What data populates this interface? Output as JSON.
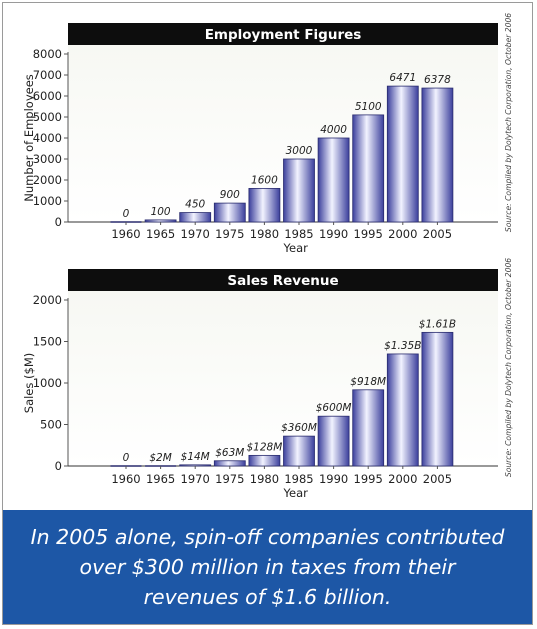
{
  "chart_data": [
    {
      "type": "bar",
      "title": "Employment Figures",
      "xlabel": "Year",
      "ylabel": "Number of Employees",
      "categories": [
        "1960",
        "1965",
        "1970",
        "1975",
        "1980",
        "1985",
        "1990",
        "1995",
        "2000",
        "2005"
      ],
      "values": [
        0,
        100,
        450,
        900,
        1600,
        3000,
        4000,
        5100,
        6471,
        6378
      ],
      "data_labels": [
        "0",
        "100",
        "450",
        "900",
        "1600",
        "3000",
        "4000",
        "5100",
        "6471",
        "6378"
      ],
      "yticks": [
        0,
        1000,
        2000,
        3000,
        4000,
        5000,
        6000,
        7000,
        8000
      ],
      "ytick_labels": [
        "0",
        "1000",
        "2000",
        "3000",
        "4000",
        "5000",
        "6000",
        "7000",
        "8000"
      ],
      "ylim": [
        0,
        8000
      ],
      "source": "Source: Compiled by Dolytech Corporation, October 2006"
    },
    {
      "type": "bar",
      "title": "Sales Revenue",
      "xlabel": "Year",
      "ylabel": "Sales ($M)",
      "categories": [
        "1960",
        "1965",
        "1970",
        "1975",
        "1980",
        "1985",
        "1990",
        "1995",
        "2000",
        "2005"
      ],
      "values": [
        0,
        2,
        14,
        63,
        128,
        360,
        600,
        918,
        1350,
        1610
      ],
      "data_labels": [
        "0",
        "$2M",
        "$14M",
        "$63M",
        "$128M",
        "$360M",
        "$600M",
        "$918M",
        "$1.35B",
        "$1.61B"
      ],
      "yticks": [
        0,
        500,
        1000,
        1500,
        2000
      ],
      "ytick_labels": [
        "0",
        "500",
        "1000",
        "1500",
        "2000"
      ],
      "ylim": [
        0,
        2000
      ],
      "source": "Source: Compiled by Dolytech Corporation, October 2006"
    }
  ],
  "caption": {
    "lines": [
      "In 2005 alone, spin-off companies contributed",
      "over $300 million in taxes from their",
      "revenues of $1.6 billion."
    ]
  },
  "colors": {
    "title_bar": "#0d0d0d",
    "title_text": "#ffffff",
    "caption_bg": "#1d57a6",
    "bar_light": "#f2f3ff",
    "bar_dark": "#3b3f9c",
    "bar_edge": "#2a2c6e",
    "plot_bg_top": "#f7f8f3",
    "plot_bg_bottom": "#ffffff"
  }
}
